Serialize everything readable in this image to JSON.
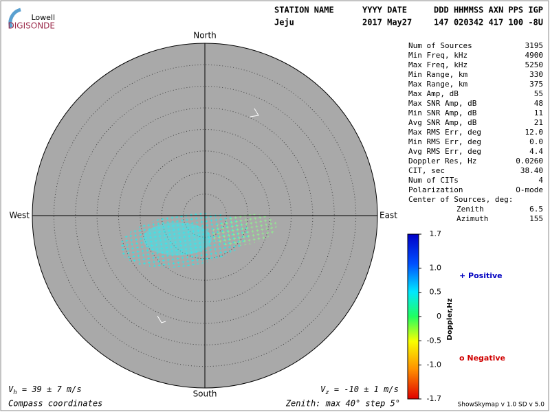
{
  "header": {
    "logo_top": "Lowell",
    "logo_bottom": "DIGISONDE",
    "line1": [
      "STATION NAME",
      "YYYY DATE",
      "DDD HHMMSS AXN PPS IGP"
    ],
    "line2": [
      "Jeju",
      "2017 May27",
      "147 020342 417 100 -8U"
    ]
  },
  "compass": {
    "north": "North",
    "south": "South",
    "east": "East",
    "west": "West"
  },
  "stats": [
    [
      "Num of Sources",
      "3195"
    ],
    [
      "Min Freq, kHz",
      "4900"
    ],
    [
      "Max Freq, kHz",
      "5250"
    ],
    [
      "Min Range, km",
      "330"
    ],
    [
      "Max Range, km",
      "375"
    ],
    [
      "Max Amp, dB",
      "55"
    ],
    [
      "Max SNR Amp, dB",
      "48"
    ],
    [
      "Min SNR Amp, dB",
      "11"
    ],
    [
      "Avg SNR Amp, dB",
      "21"
    ],
    [
      "Max RMS Err, deg",
      "12.0"
    ],
    [
      "Min RMS Err, deg",
      "0.0"
    ],
    [
      "Avg RMS Err, deg",
      "4.4"
    ],
    [
      "Doppler Res, Hz",
      "0.0260"
    ],
    [
      "CIT, sec",
      "38.40"
    ],
    [
      "Num of CITs",
      "4"
    ],
    [
      "Polarization",
      "O-mode"
    ]
  ],
  "center": {
    "title": "Center of Sources, deg:",
    "rows": [
      [
        "Zenith",
        "6.5"
      ],
      [
        "Azimuth",
        "155"
      ]
    ]
  },
  "colorbar": {
    "title": "Doppler,Hz",
    "ticks": [
      {
        "value": 1.7,
        "label": "1.7"
      },
      {
        "value": 1.0,
        "label": "1.0"
      },
      {
        "value": 0.5,
        "label": "0.5"
      },
      {
        "value": 0,
        "label": "0"
      },
      {
        "value": -0.5,
        "label": "-0.5"
      },
      {
        "value": -1.0,
        "label": "-1.0"
      },
      {
        "value": -1.7,
        "label": "-1.7"
      }
    ]
  },
  "legend": {
    "positive": "+ Positive",
    "negative": "o Negative"
  },
  "footer": {
    "vh": {
      "symbol": "V",
      "subscript": "h",
      "text": " = 39 ± 7 m/s"
    },
    "vz": {
      "symbol": "V",
      "subscript": "z",
      "text": " = -10 ± 1 m/s"
    },
    "coords": "Compass coordinates",
    "zenith": "Zenith: max 40°  step 5°",
    "version": "ShowSkymap v 1.0  SD v 5.0"
  }
}
